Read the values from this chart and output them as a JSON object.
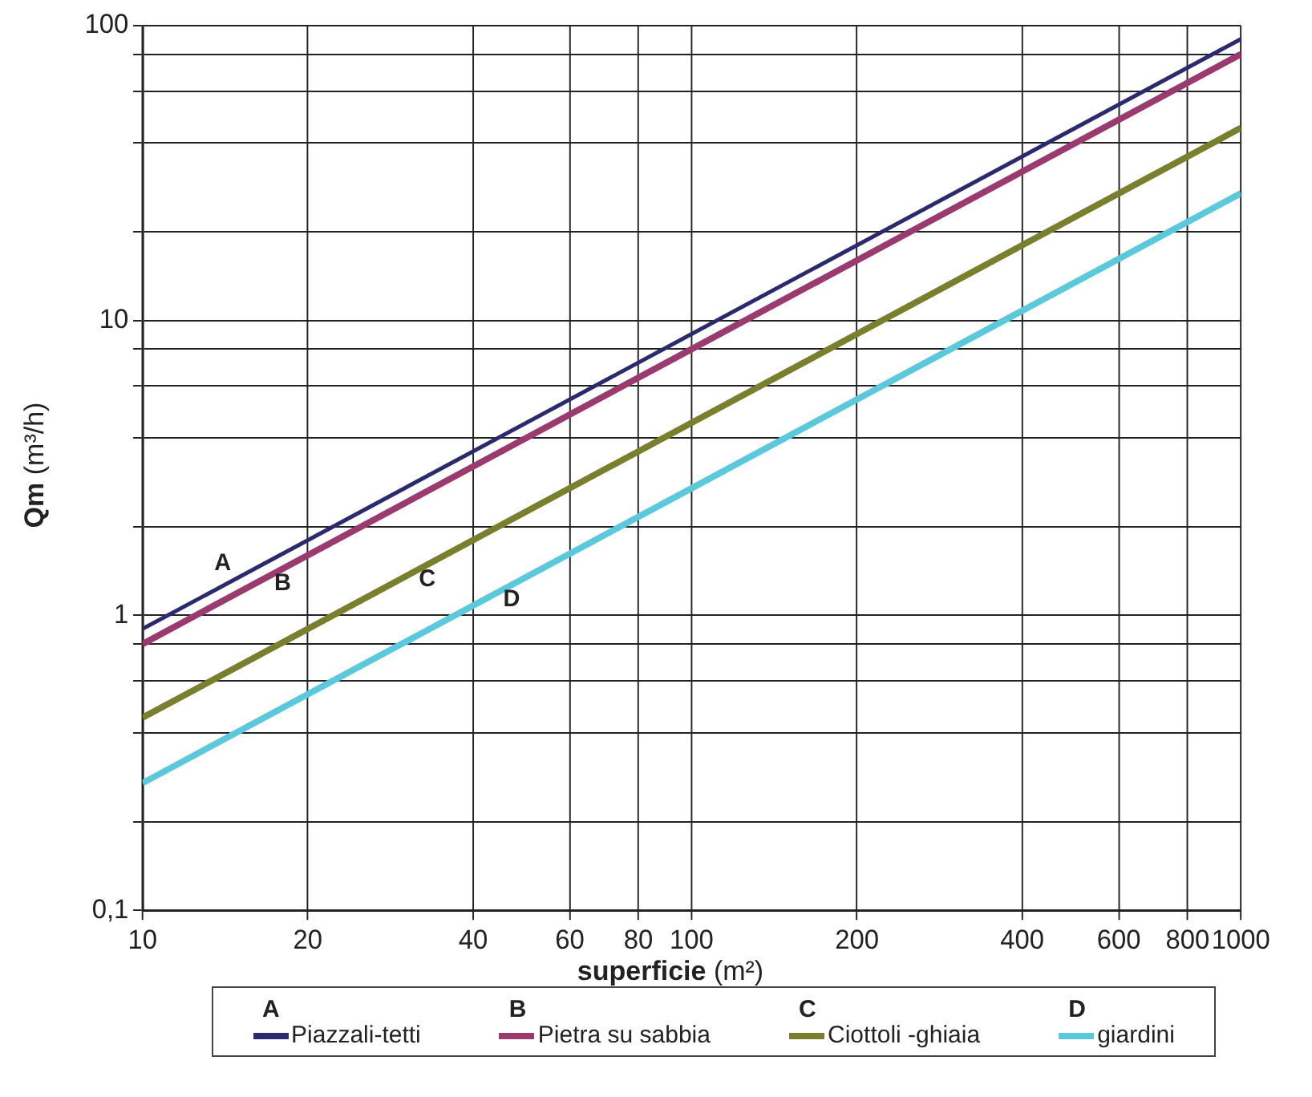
{
  "chart_data": {
    "type": "line",
    "xlabel": "superficie (m²)",
    "ylabel": "Qm (m³/h)",
    "log": "xy",
    "grid": true,
    "legend": "bottom",
    "marker": "none",
    "line_style": "solid",
    "xlim": [
      10,
      1000
    ],
    "xticks": [
      10,
      20,
      40,
      60,
      80,
      100,
      200,
      400,
      600,
      800,
      1000
    ],
    "ylim": [
      0.1,
      100
    ],
    "yticks": [
      {
        "value": 0.1,
        "label": "0,1"
      },
      {
        "value": 0.2,
        "label": null
      },
      {
        "value": 0.4,
        "label": null
      },
      {
        "value": 0.6,
        "label": null
      },
      {
        "value": 0.8,
        "label": null
      },
      1,
      {
        "value": 2,
        "label": null
      },
      {
        "value": 4,
        "label": null
      },
      {
        "value": 6,
        "label": null
      },
      {
        "value": 8,
        "label": null
      },
      10,
      {
        "value": 20,
        "label": null
      },
      {
        "value": 40,
        "label": null
      },
      {
        "value": 60,
        "label": null
      },
      {
        "value": 80,
        "label": null
      },
      100
    ],
    "x": [
      10,
      100,
      1000
    ],
    "series": [
      {
        "name": "Piazzali-tetti",
        "color": "#2b2a6e",
        "values": [
          0.9,
          9,
          90
        ]
      },
      {
        "name": "Pietra su sabbia",
        "color": "#9b3a6e",
        "values": [
          0.8,
          8,
          80
        ]
      },
      {
        "name": "Ciottoli -ghiaia",
        "color": "#7a7f2e",
        "values": [
          0.45,
          4.5,
          45
        ]
      },
      {
        "name": "giardini",
        "color": "#5bc8dc",
        "values": [
          0.27,
          2.7,
          27
        ]
      }
    ],
    "annotations": [
      {
        "text": "A",
        "x": 14,
        "y": 1.26
      },
      {
        "text": "B",
        "x": 18,
        "y": 1.44
      },
      {
        "text": "C",
        "x": 33,
        "y": 1.485
      },
      {
        "text": "D",
        "x": 47,
        "y": 1.269
      }
    ]
  }
}
